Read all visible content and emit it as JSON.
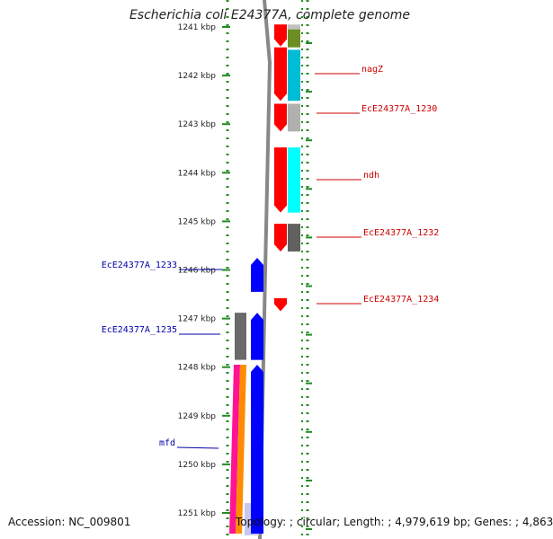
{
  "title": "Escherichia coli E24377A, complete genome",
  "footer": {
    "accession_label": "Accession:",
    "accession": "NC_009801",
    "topology_label": "Topology:",
    "topology": "circular",
    "length_label": "Length:",
    "length": "4,979,619 bp",
    "genes_label": "Genes:",
    "genes": "4,863"
  },
  "axis": {
    "unit": "kbp",
    "ticks": [
      1241,
      1242,
      1243,
      1244,
      1245,
      1246,
      1247,
      1248,
      1249,
      1250,
      1251
    ],
    "tick_labels": [
      "1241 kbp",
      "1242 kbp",
      "1243 kbp",
      "1244 kbp",
      "1245 kbp",
      "1246 kbp",
      "1247 kbp",
      "1248 kbp",
      "1249 kbp",
      "1250 kbp",
      "1251 kbp"
    ],
    "range_kbp": [
      1240.95,
      1251.55
    ]
  },
  "colors": {
    "forward": "#ff0000",
    "reverse": "#0000ff",
    "label_forward": "#cc0000",
    "label_reverse": "#0000aa",
    "scale": "#228b22",
    "backbone": "#888888"
  },
  "genes": [
    {
      "name": "",
      "strand": "+",
      "start_kbp": 1240.95,
      "end_kbp": 1241.4,
      "label_color": ""
    },
    {
      "name": "nagZ",
      "strand": "+",
      "start_kbp": 1241.42,
      "end_kbp": 1242.52,
      "label_color": "red"
    },
    {
      "name": "EcE24377A_1230",
      "strand": "+",
      "start_kbp": 1242.58,
      "end_kbp": 1243.15,
      "label_color": "red"
    },
    {
      "name": "ndh",
      "strand": "+",
      "start_kbp": 1243.48,
      "end_kbp": 1244.82,
      "label_color": "red"
    },
    {
      "name": "EcE24377A_1232",
      "strand": "+",
      "start_kbp": 1245.05,
      "end_kbp": 1245.62,
      "label_color": "red"
    },
    {
      "name": "EcE24377A_1233",
      "strand": "-",
      "start_kbp": 1245.75,
      "end_kbp": 1246.45,
      "label_color": "blue"
    },
    {
      "name": "EcE24377A_1234",
      "strand": "+",
      "start_kbp": 1246.58,
      "end_kbp": 1246.85,
      "label_color": "red"
    },
    {
      "name": "EcE24377A_1235",
      "strand": "-",
      "start_kbp": 1246.88,
      "end_kbp": 1247.85,
      "label_color": "blue"
    },
    {
      "name": "mfd",
      "strand": "-",
      "start_kbp": 1247.95,
      "end_kbp": 1251.55,
      "label_color": "blue"
    }
  ],
  "annotations": [
    {
      "name": "nagZ",
      "strand": "+"
    },
    {
      "name": "EcE24377A_1230",
      "strand": "+"
    },
    {
      "name": "ndh",
      "strand": "+"
    },
    {
      "name": "EcE24377A_1232",
      "strand": "+"
    },
    {
      "name": "EcE24377A_1233",
      "strand": "-"
    },
    {
      "name": "EcE24377A_1234",
      "strand": "+"
    },
    {
      "name": "EcE24377A_1235",
      "strand": "-"
    },
    {
      "name": "mfd",
      "strand": "-"
    }
  ],
  "feature_tracks": {
    "forward_blocks": [
      {
        "start_kbp": 1240.95,
        "end_kbp": 1241.05,
        "color": "#c0c0c0"
      },
      {
        "start_kbp": 1241.05,
        "end_kbp": 1241.42,
        "color": "#6b8e23"
      },
      {
        "start_kbp": 1241.47,
        "end_kbp": 1242.52,
        "color": "#00bcd4"
      },
      {
        "start_kbp": 1242.58,
        "end_kbp": 1243.15,
        "color": "#b0b0b0"
      },
      {
        "start_kbp": 1243.48,
        "end_kbp": 1244.82,
        "color": "#00ffff"
      },
      {
        "start_kbp": 1245.05,
        "end_kbp": 1245.62,
        "color": "#606060"
      }
    ],
    "reverse_blocks": [
      {
        "start_kbp": 1246.88,
        "end_kbp": 1247.85,
        "color": "#6a6a6a"
      },
      {
        "start_kbp": 1247.95,
        "end_kbp": 1251.55,
        "color": "#ff1493"
      },
      {
        "start_kbp": 1247.95,
        "end_kbp": 1251.55,
        "color": "#ff8c00"
      }
    ]
  }
}
